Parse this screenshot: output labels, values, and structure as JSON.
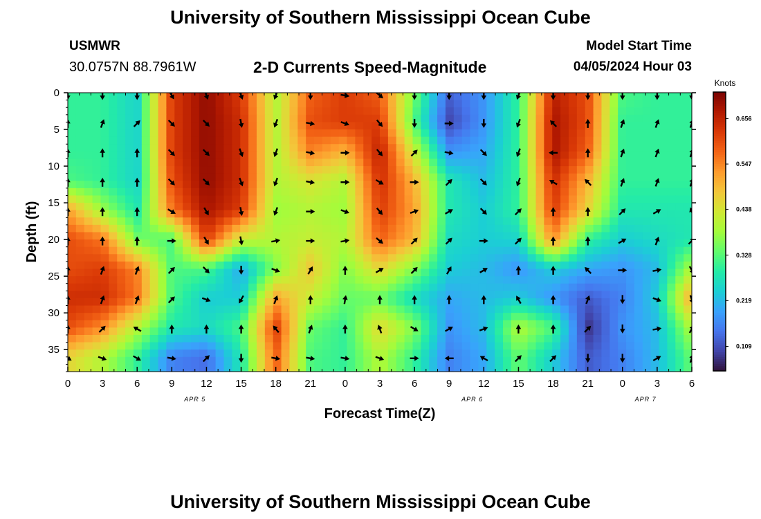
{
  "page": {
    "title_top": "University of Southern Mississippi Ocean Cube",
    "title_bottom": "University of Southern Mississippi Ocean Cube",
    "station": "USMWR",
    "coords": "30.0757N  88.7961W",
    "subtitle": "2-D Currents Speed-Magnitude",
    "model_start_label": "Model Start Time",
    "model_start_value": "04/05/2024 Hour 03"
  },
  "chart_data": {
    "type": "heatmap",
    "xlabel": "Forecast Time(Z)",
    "ylabel": "Depth (ft)",
    "x_tick_labels": [
      "0",
      "3",
      "6",
      "9",
      "12",
      "15",
      "18",
      "21",
      "0",
      "3",
      "6",
      "9",
      "12",
      "15",
      "18",
      "21",
      "0",
      "3",
      "6"
    ],
    "x_range_hours": [
      0,
      54
    ],
    "date_labels": [
      {
        "label": "APR 5",
        "hour": 11
      },
      {
        "label": "APR 6",
        "hour": 35
      },
      {
        "label": "APR 7",
        "hour": 50
      }
    ],
    "y_ticks": [
      0,
      5,
      10,
      15,
      20,
      25,
      30,
      35
    ],
    "y_range": [
      0,
      38
    ],
    "colorbar": {
      "title": "Knots",
      "tick_labels": [
        "0.656",
        "0.547",
        "0.438",
        "0.328",
        "0.219",
        "0.109"
      ],
      "tick_values": [
        0.656,
        0.547,
        0.438,
        0.328,
        0.219,
        0.109
      ],
      "range": [
        0.05,
        0.72
      ],
      "colors": [
        "#30123b",
        "#4145ab",
        "#4675ed",
        "#39a2fc",
        "#1bcfd4",
        "#24eca6",
        "#61fc6c",
        "#a4fc3b",
        "#d1e834",
        "#f3c63a",
        "#fe9b2d",
        "#f36315",
        "#d93806",
        "#b11901",
        "#7a0403"
      ]
    },
    "speed_grid": {
      "hours": [
        0,
        3,
        6,
        9,
        12,
        15,
        18,
        21,
        24,
        27,
        30,
        33,
        36,
        39,
        42,
        45,
        48,
        51,
        54
      ],
      "depths": [
        0,
        4,
        8,
        12,
        16,
        20,
        24,
        28,
        32,
        36
      ],
      "values": [
        [
          0.3,
          0.3,
          0.25,
          0.62,
          0.7,
          0.62,
          0.4,
          0.58,
          0.62,
          0.58,
          0.35,
          0.13,
          0.18,
          0.3,
          0.66,
          0.6,
          0.32,
          0.3,
          0.3
        ],
        [
          0.3,
          0.3,
          0.25,
          0.62,
          0.7,
          0.64,
          0.4,
          0.6,
          0.62,
          0.62,
          0.32,
          0.1,
          0.18,
          0.3,
          0.68,
          0.6,
          0.3,
          0.3,
          0.3
        ],
        [
          0.3,
          0.3,
          0.25,
          0.62,
          0.7,
          0.64,
          0.4,
          0.55,
          0.5,
          0.66,
          0.42,
          0.18,
          0.2,
          0.3,
          0.68,
          0.58,
          0.3,
          0.3,
          0.3
        ],
        [
          0.32,
          0.3,
          0.25,
          0.6,
          0.7,
          0.64,
          0.4,
          0.44,
          0.4,
          0.64,
          0.5,
          0.28,
          0.22,
          0.3,
          0.64,
          0.5,
          0.3,
          0.3,
          0.3
        ],
        [
          0.52,
          0.38,
          0.28,
          0.56,
          0.68,
          0.62,
          0.38,
          0.4,
          0.38,
          0.62,
          0.52,
          0.28,
          0.24,
          0.3,
          0.62,
          0.46,
          0.28,
          0.28,
          0.28
        ],
        [
          0.6,
          0.56,
          0.35,
          0.32,
          0.62,
          0.42,
          0.4,
          0.42,
          0.4,
          0.58,
          0.5,
          0.26,
          0.24,
          0.25,
          0.54,
          0.3,
          0.24,
          0.26,
          0.28
        ],
        [
          0.6,
          0.62,
          0.55,
          0.32,
          0.32,
          0.2,
          0.36,
          0.48,
          0.36,
          0.46,
          0.36,
          0.24,
          0.22,
          0.18,
          0.24,
          0.2,
          0.18,
          0.22,
          0.4
        ],
        [
          0.64,
          0.64,
          0.56,
          0.32,
          0.24,
          0.24,
          0.52,
          0.42,
          0.34,
          0.34,
          0.26,
          0.2,
          0.22,
          0.24,
          0.18,
          0.12,
          0.16,
          0.24,
          0.52
        ],
        [
          0.6,
          0.54,
          0.4,
          0.28,
          0.26,
          0.32,
          0.62,
          0.34,
          0.3,
          0.46,
          0.36,
          0.18,
          0.22,
          0.4,
          0.32,
          0.08,
          0.18,
          0.22,
          0.4
        ],
        [
          0.46,
          0.4,
          0.3,
          0.16,
          0.14,
          0.28,
          0.58,
          0.32,
          0.3,
          0.4,
          0.3,
          0.16,
          0.2,
          0.34,
          0.24,
          0.12,
          0.16,
          0.22,
          0.34
        ]
      ]
    },
    "vector_grid": {
      "hours": [
        0,
        3,
        6,
        9,
        12,
        15,
        18,
        21,
        24,
        27,
        30,
        33,
        36,
        39,
        42,
        45,
        48,
        51,
        54
      ],
      "depths": [
        0,
        4,
        8,
        12,
        16,
        20,
        24,
        28,
        32,
        36
      ],
      "directions_deg": [
        [
          180,
          180,
          180,
          150,
          160,
          160,
          200,
          180,
          100,
          130,
          180,
          180,
          180,
          200,
          180,
          180,
          180,
          180,
          180
        ],
        [
          0,
          20,
          45,
          135,
          135,
          170,
          200,
          100,
          110,
          140,
          180,
          90,
          180,
          200,
          315,
          0,
          20,
          20,
          20
        ],
        [
          0,
          0,
          0,
          135,
          135,
          160,
          200,
          100,
          90,
          140,
          45,
          100,
          135,
          200,
          270,
          0,
          20,
          20,
          20
        ],
        [
          0,
          0,
          0,
          135,
          135,
          160,
          200,
          100,
          90,
          120,
          90,
          45,
          135,
          200,
          300,
          315,
          20,
          20,
          20
        ],
        [
          0,
          0,
          0,
          120,
          150,
          170,
          200,
          90,
          110,
          140,
          70,
          60,
          135,
          45,
          0,
          0,
          45,
          60,
          340
        ],
        [
          0,
          0,
          0,
          90,
          150,
          170,
          80,
          90,
          80,
          130,
          45,
          45,
          90,
          45,
          0,
          0,
          60,
          20,
          45
        ],
        [
          0,
          20,
          20,
          45,
          135,
          180,
          110,
          30,
          0,
          60,
          45,
          30,
          60,
          0,
          0,
          315,
          90,
          80,
          150
        ],
        [
          0,
          20,
          20,
          45,
          110,
          210,
          20,
          0,
          10,
          0,
          0,
          0,
          0,
          330,
          0,
          20,
          180,
          110,
          160
        ],
        [
          0,
          45,
          300,
          0,
          0,
          0,
          320,
          20,
          0,
          340,
          120,
          60,
          70,
          0,
          0,
          45,
          180,
          80,
          30
        ],
        [
          120,
          110,
          120,
          100,
          45,
          180,
          100,
          100,
          100,
          110,
          90,
          270,
          300,
          45,
          45,
          180,
          180,
          60,
          20
        ]
      ]
    }
  }
}
